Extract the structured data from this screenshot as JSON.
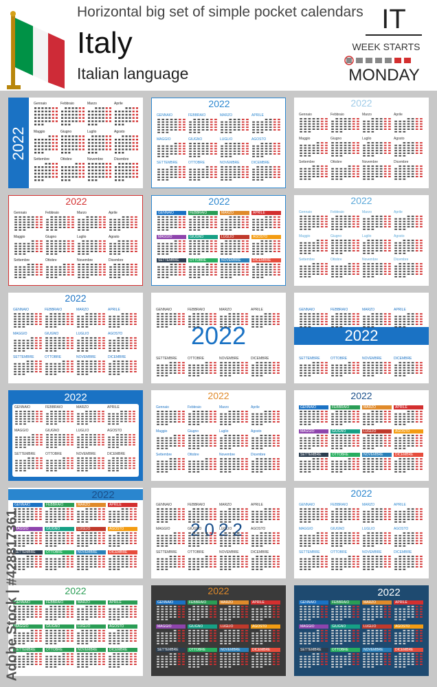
{
  "header": {
    "subtitle": "Horizontal big set of simple pocket calendars",
    "country": "Italy",
    "language": "Italian language",
    "code": "IT",
    "week_starts_label": "WEEK STARTS",
    "start_day": "MONDAY",
    "flag_colors": [
      "#009246",
      "#ffffff",
      "#ce2b37"
    ]
  },
  "year": "2022",
  "months": [
    "Gennaio",
    "Febbraio",
    "Marzo",
    "Aprile",
    "Maggio",
    "Giugno",
    "Luglio",
    "Agosto",
    "Settembre",
    "Ottobre",
    "Novembre",
    "Dicembre"
  ],
  "months_upper": [
    "GENNAIO",
    "FEBBRAIO",
    "MARZO",
    "APRILE",
    "MAGGIO",
    "GIUGNO",
    "LUGLIO",
    "AGOSTO",
    "SETTEMBRE",
    "OTTOBRE",
    "NOVEMBRE",
    "DICEMBRE"
  ],
  "stock": {
    "vertical_text": "Adobe Stock | #428817361"
  },
  "styles": [
    {
      "accent": "#1a72c4",
      "year_color": "#ffffff",
      "name_color": "#222222",
      "bg": "#ffffff"
    },
    {
      "accent": "#2a86cf",
      "year_color": "#2a86cf",
      "name_color": "#2a86cf",
      "bg": "#ffffff"
    },
    {
      "accent": "#9ecbe8",
      "year_color": "#9ecbe8",
      "name_color": "#333333",
      "bg": "#ffffff"
    },
    {
      "accent": "#d32f2f",
      "year_color": "#d32f2f",
      "name_color": "#222222",
      "bg": "#ffffff"
    },
    {
      "accent": "#2a86cf",
      "year_color": "#2a86cf",
      "name_color": "#ffffff",
      "bg": "#ffffff"
    },
    {
      "accent": "#5aa7d8",
      "year_color": "#5aa7d8",
      "name_color": "#5aa7d8",
      "bg": "#ffffff"
    },
    {
      "accent": "#1a72c4",
      "year_color": "#1a72c4",
      "name_color": "#1a72c4",
      "bg": "#ffffff"
    },
    {
      "accent": "#1a72c4",
      "year_color": "#1a72c4",
      "name_color": "#333333",
      "bg": "#ffffff"
    },
    {
      "accent": "#1a72c4",
      "year_color": "#ffffff",
      "name_color": "#1a72c4",
      "bg": "#ffffff"
    },
    {
      "accent": "#1a72c4",
      "year_color": "#ffffff",
      "name_color": "#333333",
      "bg": "#1a72c4"
    },
    {
      "accent": "#e08a2a",
      "year_color": "#e08a2a",
      "name_color": "#1a72c4",
      "bg": "#ffffff"
    },
    {
      "accent": "#2a86cf",
      "year_color": "#1a4f8a",
      "name_color": "#ffffff",
      "bg": "#ffffff"
    },
    {
      "accent": "#2a86cf",
      "year_color": "#2a86cf",
      "name_color": "#ffffff",
      "bg": "#ffffff"
    },
    {
      "accent": "#2a86cf",
      "year_color": "#2a86cf",
      "name_color": "#333333",
      "bg": "#ffffff"
    },
    {
      "accent": "#2a86cf",
      "year_color": "#2a86cf",
      "name_color": "#2a86cf",
      "bg": "#ffffff"
    },
    {
      "accent": "#2a9d55",
      "year_color": "#2a9d55",
      "name_color": "#ffffff",
      "bg": "#ffffff"
    },
    {
      "accent": "#e08a2a",
      "year_color": "#e08a2a",
      "name_color": "#ffffff",
      "bg": "#3a3a3a"
    },
    {
      "accent": "#2a86cf",
      "year_color": "#ffffff",
      "name_color": "#ffffff",
      "bg": "#1e4a70"
    }
  ]
}
